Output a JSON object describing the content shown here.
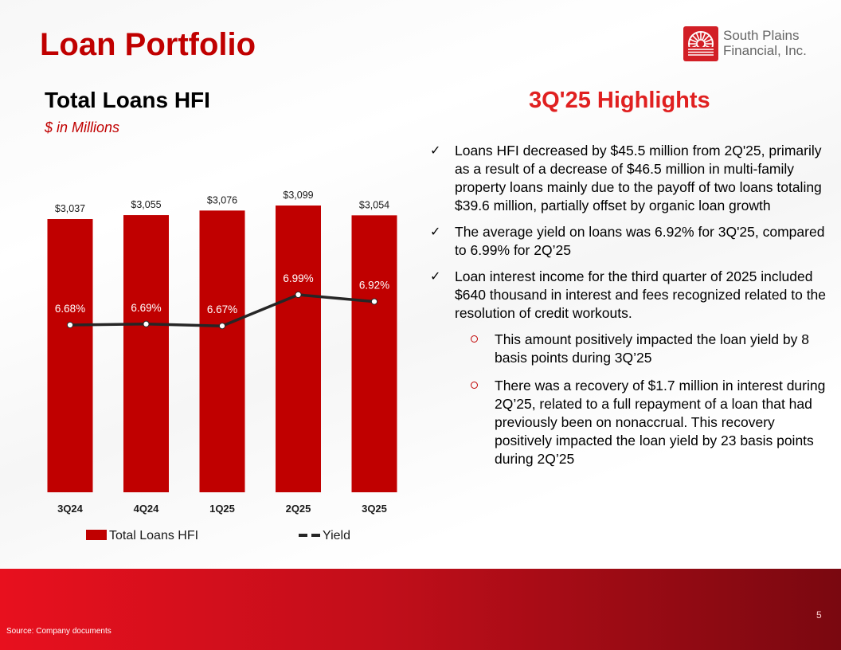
{
  "page": {
    "title": "Loan Portfolio",
    "page_number": "5",
    "source": "Source: Company documents"
  },
  "logo": {
    "line1": "South Plains",
    "line2": "Financial, Inc."
  },
  "chart_heading": {
    "title": "Total Loans HFI",
    "subtitle": "$ in Millions"
  },
  "highlights": {
    "title": "3Q'25 Highlights",
    "bullets": [
      {
        "text": "Loans HFI decreased by $45.5 million from 2Q'25, primarily as a result of a decrease of $46.5 million in multi-family property loans mainly due to the payoff of two loans totaling $39.6 million, partially offset by organic loan growth"
      },
      {
        "text": "The average yield on loans was 6.92% for 3Q'25, compared to 6.99% for 2Q’25"
      },
      {
        "text": "Loan interest income for the third quarter of 2025 included $640 thousand in interest and fees recognized related to the resolution of credit workouts."
      }
    ],
    "sub_bullets": [
      {
        "text": "This amount positively impacted the loan yield by 8 basis points during 3Q’25"
      },
      {
        "text": "There was a recovery of $1.7 million in interest during 2Q’25, related to a full repayment of a loan that had previously been on nonaccrual. This recovery positively impacted the loan yield by 23 basis points during 2Q’25"
      }
    ]
  },
  "colors": {
    "bar": "#c00000",
    "line": "#262626",
    "accent": "#c00000"
  },
  "chart_data": {
    "type": "bar",
    "categories": [
      "3Q24",
      "4Q24",
      "1Q25",
      "2Q25",
      "3Q25"
    ],
    "series": [
      {
        "name": "Total Loans HFI",
        "type": "bar",
        "values": [
          3037,
          3055,
          3076,
          3099,
          3054
        ],
        "labels": [
          "$3,037",
          "$3,055",
          "$3,076",
          "$3,099",
          "$3,054"
        ]
      },
      {
        "name": "Yield",
        "type": "line",
        "values": [
          6.68,
          6.69,
          6.67,
          6.99,
          6.92
        ],
        "labels": [
          "6.68%",
          "6.69%",
          "6.67%",
          "6.99%",
          "6.92%"
        ]
      }
    ],
    "legend": "bottom",
    "grid": false
  }
}
